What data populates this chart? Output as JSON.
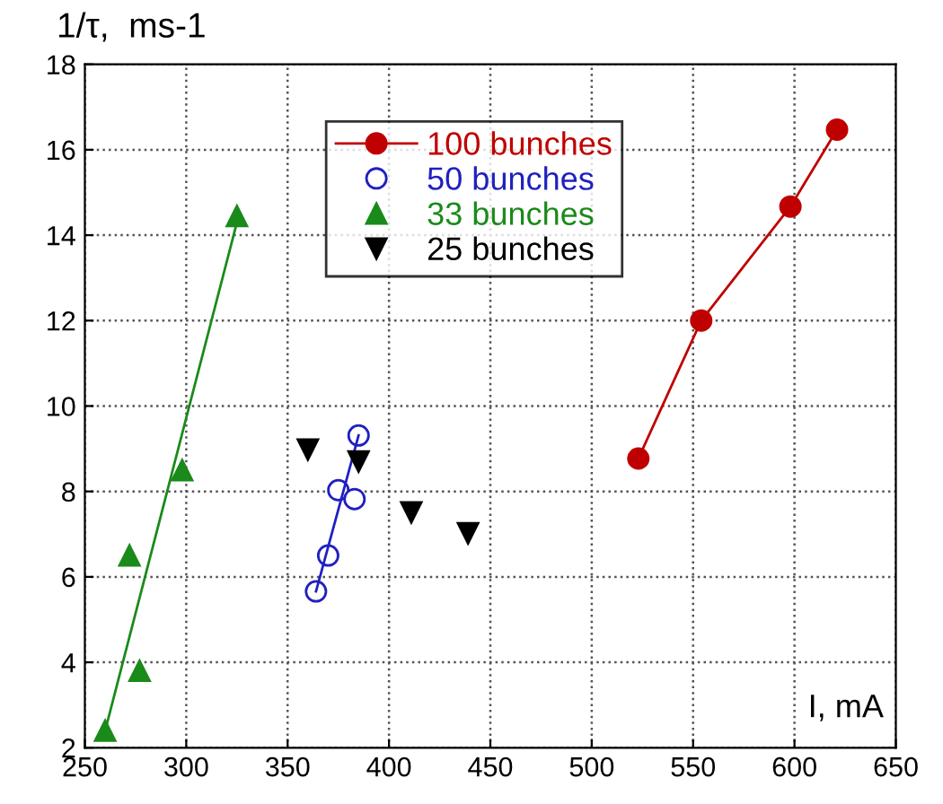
{
  "chart_data": {
    "type": "scatter",
    "xlabel": "I, mA",
    "ylabel": "1/τ,  ms-1",
    "xlim": [
      250,
      650
    ],
    "xticks": [
      250,
      300,
      350,
      400,
      450,
      500,
      550,
      600,
      650
    ],
    "ylim": [
      2,
      18
    ],
    "yticks": [
      2,
      4,
      6,
      8,
      10,
      12,
      14,
      16,
      18
    ],
    "grid": true,
    "legend": "top",
    "series": [
      {
        "name": "100 bunches",
        "type": "line",
        "color": "#c00000",
        "marker": "circle",
        "x": [
          523,
          554,
          598,
          621
        ],
        "values": [
          8.77,
          12.0,
          14.67,
          16.47
        ]
      },
      {
        "name": "50 bunches",
        "color": "#2020c0",
        "marker": "open_circle",
        "x": [
          364,
          370,
          375,
          383,
          385
        ],
        "values": [
          5.66,
          6.5,
          8.03,
          7.82,
          9.31
        ]
      },
      {
        "type": "line",
        "color": "#2020c0",
        "marker": "none",
        "x": [
          364,
          385
        ],
        "values": [
          5.66,
          9.31
        ]
      },
      {
        "name": "33 bunches",
        "color": "#1a8a1a",
        "marker": "triangle",
        "x": [
          260,
          272,
          277,
          298,
          325
        ],
        "values": [
          2.4,
          6.5,
          3.8,
          8.5,
          14.45
        ]
      },
      {
        "type": "line",
        "color": "#1a8a1a",
        "marker": "none",
        "x": [
          260,
          325
        ],
        "values": [
          2.4,
          14.3
        ]
      },
      {
        "name": "25 bunches",
        "color": "#000000",
        "marker": "triangle_down",
        "x": [
          360,
          385,
          411,
          439
        ],
        "values": [
          8.98,
          8.7,
          7.51,
          7.02
        ]
      }
    ]
  }
}
